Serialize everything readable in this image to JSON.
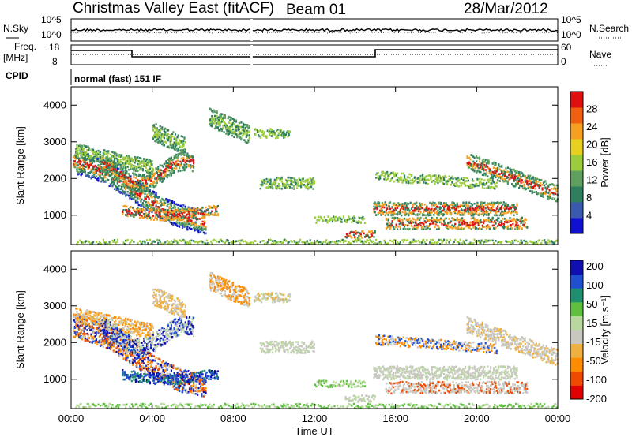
{
  "header": {
    "station": "Christmas Valley East (fitACF)",
    "beam": "Beam 01",
    "date": "28/Mar/2012"
  },
  "top_panels": {
    "nsky_label": "N.Sky",
    "nsearch_label": "N.Search",
    "noise_ticks": [
      "10^5",
      "10^0"
    ],
    "freq_label_1": "Freq.",
    "freq_label_2": "[MHz]",
    "freq_ticks": [
      "18",
      "8"
    ],
    "nave_label": "Nave",
    "nave_ticks": [
      "60",
      "0"
    ],
    "cpid_label": "CPID",
    "cpid_text": "normal (fast) 151 IF"
  },
  "colors": {
    "power_scale": [
      "#1010d0",
      "#3a5ab0",
      "#2f7f5f",
      "#5fa05f",
      "#9ccc3c",
      "#e8d020",
      "#f5a020",
      "#f06010",
      "#e01010"
    ],
    "velocity_scale": [
      "#e00000",
      "#f04a00",
      "#ff8c00",
      "#f0b040",
      "#c8c8c0",
      "#b8d8a0",
      "#5fc040",
      "#1f8f70",
      "#2050d0",
      "#1010b0"
    ]
  },
  "chart_data": [
    {
      "type": "heatmap",
      "name": "power",
      "ylabel": "Slant Range [km]",
      "y_ticks": [
        "1000",
        "2000",
        "3000",
        "4000"
      ],
      "ylim": [
        200,
        4500
      ],
      "xlim": [
        0,
        24
      ],
      "colorbar_label": "Power [dB]",
      "colorbar_ticks": [
        "4",
        "8",
        "12",
        "16",
        "20",
        "24",
        "28"
      ],
      "colorbar_range": [
        0,
        32
      ]
    },
    {
      "type": "heatmap",
      "name": "velocity",
      "ylabel": "Slant Range [km]",
      "y_ticks": [
        "1000",
        "2000",
        "3000",
        "4000"
      ],
      "ylim": [
        200,
        4500
      ],
      "xlim": [
        0,
        24
      ],
      "colorbar_label": "Velocity [m s⁻¹]",
      "colorbar_ticks": [
        "200",
        "100",
        "50",
        "15",
        "-15",
        "-50",
        "-100",
        "-200"
      ],
      "xlabel": "Time UT",
      "x_ticks": [
        "00:00",
        "04:00",
        "08:00",
        "12:00",
        "16:00",
        "20:00",
        "00:00"
      ]
    }
  ]
}
